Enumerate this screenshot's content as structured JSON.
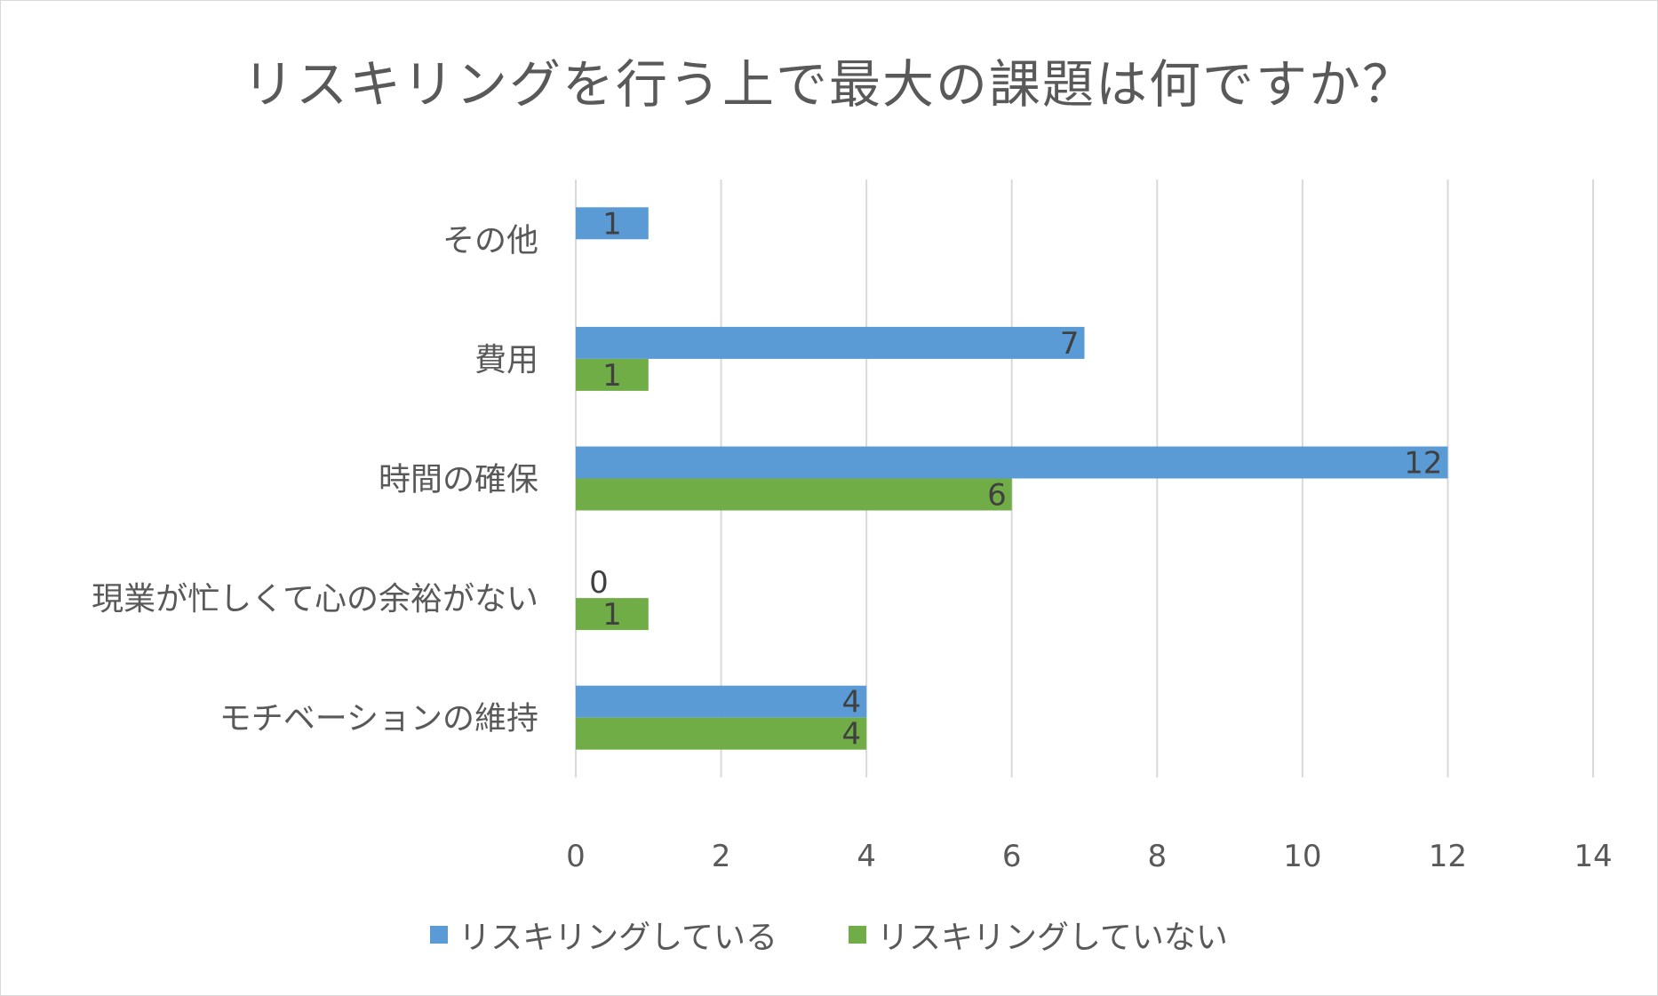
{
  "chart_data": {
    "type": "bar",
    "orientation": "horizontal",
    "title": "リスキリングを行う上で最大の課題は何ですか？",
    "categories": [
      "その他",
      "費用",
      "時間の確保",
      "現業が忙しくて心の余裕がない",
      "モチベーションの維持"
    ],
    "series": [
      {
        "name": "リスキリングしている",
        "color": "#5b9bd5",
        "values": [
          1,
          7,
          12,
          0,
          4
        ]
      },
      {
        "name": "リスキリングしていない",
        "color": "#70ad47",
        "values": [
          null,
          1,
          6,
          1,
          4
        ]
      }
    ],
    "xlim": [
      0,
      14
    ],
    "xticks": [
      0,
      2,
      4,
      6,
      8,
      10,
      12,
      14
    ],
    "xtick_labels": [
      "0",
      "2",
      "4",
      "6",
      "8",
      "10",
      "12",
      "14"
    ],
    "grid": true,
    "legend_position": "bottom"
  }
}
